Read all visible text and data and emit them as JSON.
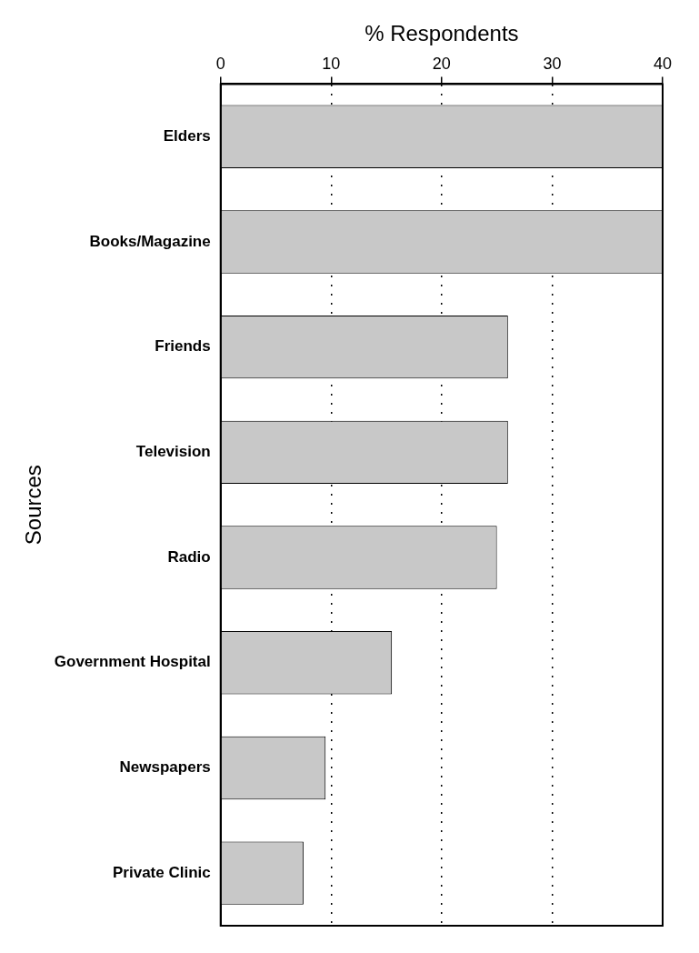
{
  "chart_data": {
    "type": "bar",
    "orientation": "horizontal",
    "xlabel": "% Respondents",
    "ylabel": "Sources",
    "categories": [
      "Elders",
      "Books/Magazine",
      "Friends",
      "Television",
      "Radio",
      "Government Hospital",
      "Newspapers",
      "Private Clinic"
    ],
    "values": [
      40,
      40,
      26,
      26,
      25,
      15.5,
      9.5,
      7.5
    ],
    "color": "#c8c8c8",
    "xlim": [
      0,
      40
    ],
    "xticks": [
      0,
      10,
      20,
      30,
      40
    ],
    "grid": "x"
  }
}
